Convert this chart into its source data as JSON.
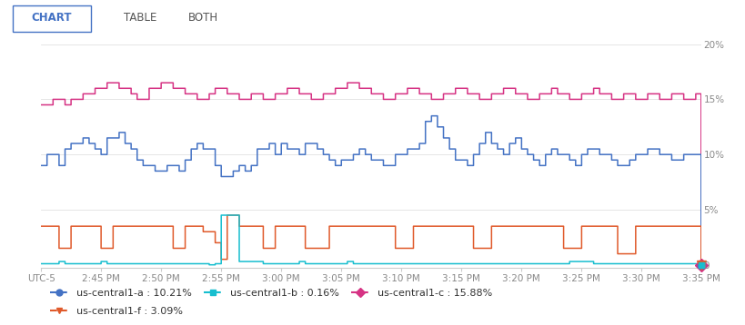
{
  "x_ticks": [
    "UTC-5",
    "2:45 PM",
    "2:50 PM",
    "2:55 PM",
    "3:00 PM",
    "3:05 PM",
    "3:10 PM",
    "3:15 PM",
    "3:20 PM",
    "3:25 PM",
    "3:30 PM",
    "3:35 PM"
  ],
  "color_a": "#4472c4",
  "color_b": "#17becf",
  "color_c": "#d63384",
  "color_f": "#e05a2b",
  "bg_color": "#ffffff",
  "grid_color": "#e0e0e0",
  "tick_color": "#888888",
  "header_buttons": [
    "CHART",
    "TABLE",
    "BOTH"
  ],
  "legend_labels": [
    "us-central1-a : 10.21%",
    "us-central1-b : 0.16%",
    "us-central1-c : 15.88%",
    "us-central1-f : 3.09%"
  ],
  "ylim": [
    -0.3,
    21.5
  ],
  "xlim": [
    0,
    55
  ]
}
